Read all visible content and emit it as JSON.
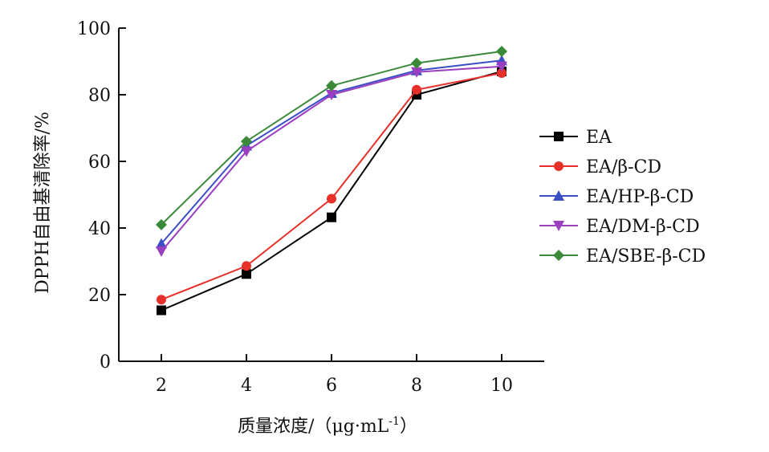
{
  "chart_data": {
    "type": "line",
    "xlabel": "质量浓度/（μg·mL",
    "xlabel_sup": "-1",
    "xlabel_close": "）",
    "ylabel": "DPPH自由基清除率/%",
    "x": [
      2,
      4,
      6,
      8,
      10
    ],
    "xlim": [
      1,
      11
    ],
    "ylim": [
      0,
      100
    ],
    "yticks": [
      0,
      20,
      40,
      60,
      80,
      100
    ],
    "xticks": [
      2,
      4,
      6,
      8,
      10
    ],
    "grid": false,
    "legend_position": "right",
    "series": [
      {
        "name": "EA",
        "values": [
          15.3,
          26.2,
          43.2,
          80.0,
          87.0
        ],
        "color": "#000000",
        "marker": "square"
      },
      {
        "name": "EA/β-CD",
        "values": [
          18.5,
          28.6,
          48.8,
          81.5,
          86.5
        ],
        "color": "#e8302a",
        "marker": "circle"
      },
      {
        "name": "EA/HP-β-CD",
        "values": [
          35.3,
          64.7,
          80.5,
          87.3,
          90.3
        ],
        "color": "#3a4fc6",
        "marker": "triangle-up"
      },
      {
        "name": "EA/DM-β-CD",
        "values": [
          33.0,
          63.0,
          80.0,
          86.8,
          88.5
        ],
        "color": "#9b3fc0",
        "marker": "triangle-down"
      },
      {
        "name": "EA/SBE-β-CD",
        "values": [
          41.0,
          66.0,
          82.7,
          89.5,
          93.0
        ],
        "color": "#3b8a3a",
        "marker": "diamond"
      }
    ]
  }
}
